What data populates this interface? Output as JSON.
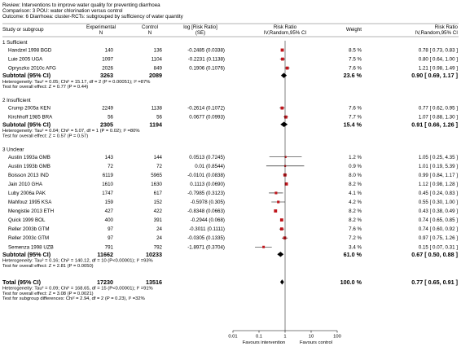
{
  "header": {
    "review": "Review:  Interventions to improve water quality for preventing diarrhoea",
    "comparison": "Comparison:  3 POU: water chlorination versus control",
    "outcome": "Outcome:  6 Diarrhoea: cluster-RCTs: subgrouped by sufficiency of water quantity"
  },
  "columns": {
    "study": "Study or subgroup",
    "experimental": "Experimental",
    "experimental_sub": "N",
    "control": "Control",
    "control_sub": "N",
    "logrr": "log [Risk Ratio]",
    "logrr_sub": "(SE)",
    "rr_plot": "Risk Ratio",
    "rr_plot_sub": "IV,Random,95% CI",
    "weight": "Weight",
    "rr_text": "Risk Ratio",
    "rr_text_sub": "IV,Random,95% CI"
  },
  "chart_data": {
    "type": "forest",
    "x_scale": "log",
    "x_ticks": [
      "0.01",
      "0.1",
      "1",
      "10",
      "100"
    ],
    "x_tick_values": [
      0.01,
      0.1,
      1,
      10,
      100
    ],
    "favours_left": "Favours intervention",
    "favours_right": "Favours control",
    "groups": [
      {
        "title": "1 Sufficient",
        "studies": [
          {
            "name": "Handzel 1998 BGD",
            "exp": "140",
            "ctl": "136",
            "logse": "-0.2485 (0.0338)",
            "weight": "8.5 %",
            "ci": "0.78 [ 0.73, 0.83 ]",
            "rr": 0.78,
            "lo": 0.73,
            "hi": 0.83,
            "w": 8.5
          },
          {
            "name": "Luie 2005 UGA",
            "exp": "1097",
            "ctl": "1104",
            "logse": "-0.2231 (0.1138)",
            "weight": "7.5 %",
            "ci": "0.80 [ 0.64, 1.00 ]",
            "rr": 0.8,
            "lo": 0.64,
            "hi": 1.0,
            "w": 7.5
          },
          {
            "name": "Opryszko 2010c AFG",
            "exp": "2026",
            "ctl": "849",
            "logse": "0.1906 (0.1076)",
            "weight": "7.6 %",
            "ci": "1.21 [ 0.98, 1.49 ]",
            "rr": 1.21,
            "lo": 0.98,
            "hi": 1.49,
            "w": 7.6
          }
        ],
        "subtotal": {
          "label": "Subtotal (95% CI)",
          "exp": "3263",
          "ctl": "2089",
          "weight": "23.6 %",
          "ci": "0.90 [ 0.69, 1.17 ]",
          "rr": 0.9,
          "lo": 0.69,
          "hi": 1.17
        },
        "heterogeneity": "Heterogeneity: Tau² = 0.05; Chi² = 15.17, df = 2 (P = 0.00051); I² =87%",
        "overall_test": "Test for overall effect: Z = 0.77 (P = 0.44)"
      },
      {
        "title": "2 Insufficient",
        "studies": [
          {
            "name": "Crump 2005a KEN",
            "exp": "2249",
            "ctl": "1138",
            "logse": "-0.2614 (0.1072)",
            "weight": "7.6 %",
            "ci": "0.77 [ 0.62, 0.95 ]",
            "rr": 0.77,
            "lo": 0.62,
            "hi": 0.95,
            "w": 7.6
          },
          {
            "name": "Kirchhoff 1985 BRA",
            "exp": "56",
            "ctl": "56",
            "logse": "0.0677 (0.0993)",
            "weight": "7.7 %",
            "ci": "1.07 [ 0.88, 1.30 ]",
            "rr": 1.07,
            "lo": 0.88,
            "hi": 1.3,
            "w": 7.7
          }
        ],
        "subtotal": {
          "label": "Subtotal (95% CI)",
          "exp": "2305",
          "ctl": "1194",
          "weight": "15.4 %",
          "ci": "0.91 [ 0.66, 1.26 ]",
          "rr": 0.91,
          "lo": 0.66,
          "hi": 1.26
        },
        "heterogeneity": "Heterogeneity: Tau² = 0.04; Chi² = 5.07, df = 1 (P = 0.02); I² =80%",
        "overall_test": "Test for overall effect: Z = 0.57 (P = 0.57)"
      },
      {
        "title": "3 Unclear",
        "studies": [
          {
            "name": "Austin 1993a GMB",
            "exp": "143",
            "ctl": "144",
            "logse": "0.0513 (0.7245)",
            "weight": "1.2 %",
            "ci": "1.05 [ 0.25, 4.35 ]",
            "rr": 1.05,
            "lo": 0.25,
            "hi": 4.35,
            "w": 1.2
          },
          {
            "name": "Austin 1993b GMB",
            "exp": "72",
            "ctl": "72",
            "logse": "0.01 (0.8544)",
            "weight": "0.9 %",
            "ci": "1.01 [ 0.19, 5.39 ]",
            "rr": 1.01,
            "lo": 0.19,
            "hi": 5.39,
            "w": 0.9
          },
          {
            "name": "Boisson 2013 IND",
            "exp": "6119",
            "ctl": "5965",
            "logse": "-0.0101 (0.0838)",
            "weight": "8.0 %",
            "ci": "0.99 [ 0.84, 1.17 ]",
            "rr": 0.99,
            "lo": 0.84,
            "hi": 1.17,
            "w": 8.0
          },
          {
            "name": "Jain 2010 GHA",
            "exp": "1610",
            "ctl": "1630",
            "logse": "0.1113 (0.0690)",
            "weight": "8.2 %",
            "ci": "1.12 [ 0.98, 1.28 ]",
            "rr": 1.12,
            "lo": 0.98,
            "hi": 1.28,
            "w": 8.2
          },
          {
            "name": "Luby 2006a PAK",
            "exp": "1747",
            "ctl": "617",
            "logse": "-0.7985 (0.3123)",
            "weight": "4.1 %",
            "ci": "0.45 [ 0.24, 0.83 ]",
            "rr": 0.45,
            "lo": 0.24,
            "hi": 0.83,
            "w": 4.1
          },
          {
            "name": "Mahfouz 1995 KSA",
            "exp": "159",
            "ctl": "152",
            "logse": "-0.5978 (0.305)",
            "weight": "4.2 %",
            "ci": "0.55 [ 0.30, 1.00 ]",
            "rr": 0.55,
            "lo": 0.3,
            "hi": 1.0,
            "w": 4.2
          },
          {
            "name": "Mengistie 2013 ETH",
            "exp": "427",
            "ctl": "422",
            "logse": "-0.8348 (0.0663)",
            "weight": "8.2 %",
            "ci": "0.43 [ 0.38, 0.49 ]",
            "rr": 0.43,
            "lo": 0.38,
            "hi": 0.49,
            "w": 8.2
          },
          {
            "name": "Quick 1999 BOL",
            "exp": "400",
            "ctl": "391",
            "logse": "-0.2944 (0.068)",
            "weight": "8.2 %",
            "ci": "0.74 [ 0.65, 0.85 ]",
            "rr": 0.74,
            "lo": 0.65,
            "hi": 0.85,
            "w": 8.2
          },
          {
            "name": "Reller 2003b GTM",
            "exp": "97",
            "ctl": "24",
            "logse": "-0.3011 (0.1111)",
            "weight": "7.6 %",
            "ci": "0.74 [ 0.60, 0.92 ]",
            "rr": 0.74,
            "lo": 0.6,
            "hi": 0.92,
            "w": 7.6
          },
          {
            "name": "Reller 2003c GTM",
            "exp": "97",
            "ctl": "24",
            "logse": "-0.0305 (0.1335)",
            "weight": "7.2 %",
            "ci": "0.97 [ 0.75, 1.26 ]",
            "rr": 0.97,
            "lo": 0.75,
            "hi": 1.26,
            "w": 7.2
          },
          {
            "name": "Semenza 1998 UZB",
            "exp": "791",
            "ctl": "792",
            "logse": "-1.8971 (0.3704)",
            "weight": "3.4 %",
            "ci": "0.15 [ 0.07, 0.31 ]",
            "rr": 0.15,
            "lo": 0.07,
            "hi": 0.31,
            "w": 3.4
          }
        ],
        "subtotal": {
          "label": "Subtotal (95% CI)",
          "exp": "11662",
          "ctl": "10233",
          "weight": "61.0 %",
          "ci": "0.67 [ 0.50, 0.88 ]",
          "rr": 0.67,
          "lo": 0.5,
          "hi": 0.88
        },
        "heterogeneity": "Heterogeneity: Tau² = 0.16; Chi² = 140.12, df = 10 (P<0.00001); I² =93%",
        "overall_test": "Test for overall effect: Z = 2.81 (P = 0.0050)"
      }
    ],
    "total": {
      "label": "Total (95% CI)",
      "exp": "17230",
      "ctl": "13516",
      "weight": "100.0 %",
      "ci": "0.77 [ 0.65, 0.91 ]",
      "rr": 0.77,
      "lo": 0.65,
      "hi": 0.91
    },
    "total_heterogeneity": "Heterogeneity: Tau² = 0.09; Chi² = 168.65, df = 15 (P<0.00001); I² =91%",
    "total_overall_test": "Test for overall effect: Z = 3.08 (P = 0.0021)",
    "subgroup_test": "Test for subgroup differences: Chi² = 2.94, df = 2 (P = 0.23), I² =32%"
  }
}
